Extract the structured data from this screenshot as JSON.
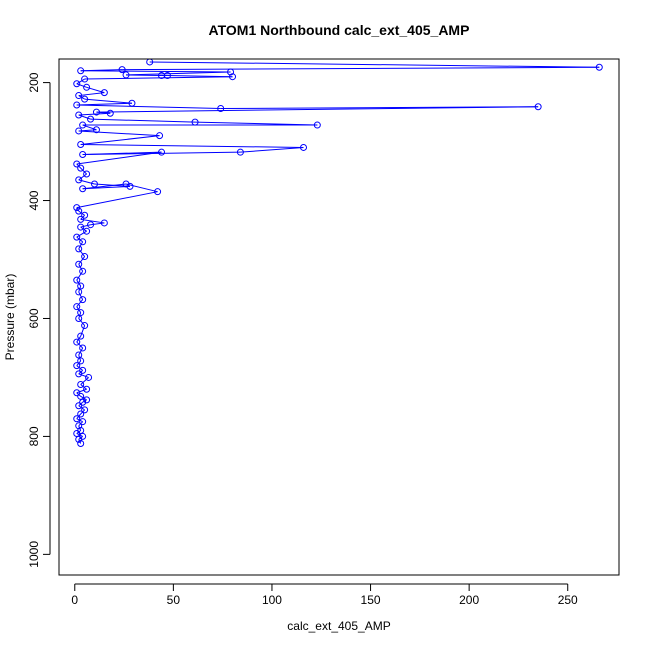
{
  "chart_data": {
    "type": "scatter",
    "title": "ATOM1 Northbound calc_ext_405_AMP",
    "xlabel": "calc_ext_405_AMP",
    "ylabel": "Pressure (mbar)",
    "xlim": [
      -8,
      276
    ],
    "ylim": [
      1035,
      160
    ],
    "y_reversed": true,
    "x_ticks": [
      0,
      50,
      100,
      150,
      200,
      250
    ],
    "y_ticks": [
      200,
      400,
      600,
      800,
      1000
    ],
    "grid": false,
    "series_color": "#0000ff",
    "marker": "open-circle",
    "series": [
      {
        "values": [
          [
            3,
            812
          ],
          [
            2,
            805
          ],
          [
            4,
            800
          ],
          [
            1,
            795
          ],
          [
            3,
            790
          ],
          [
            2,
            782
          ],
          [
            4,
            775
          ],
          [
            1,
            770
          ],
          [
            3,
            762
          ],
          [
            5,
            755
          ],
          [
            2,
            748
          ],
          [
            4,
            742
          ],
          [
            6,
            738
          ],
          [
            3,
            732
          ],
          [
            1,
            726
          ],
          [
            6,
            720
          ],
          [
            3,
            712
          ],
          [
            7,
            700
          ],
          [
            2,
            694
          ],
          [
            4,
            688
          ],
          [
            1,
            680
          ],
          [
            3,
            672
          ],
          [
            2,
            662
          ],
          [
            4,
            650
          ],
          [
            1,
            640
          ],
          [
            3,
            630
          ],
          [
            5,
            612
          ],
          [
            2,
            600
          ],
          [
            3,
            590
          ],
          [
            1,
            580
          ],
          [
            4,
            568
          ],
          [
            2,
            555
          ],
          [
            3,
            545
          ],
          [
            1,
            535
          ],
          [
            4,
            520
          ],
          [
            2,
            508
          ],
          [
            5,
            495
          ],
          [
            2,
            482
          ],
          [
            4,
            470
          ],
          [
            1,
            462
          ],
          [
            6,
            452
          ],
          [
            3,
            445
          ],
          [
            8,
            441
          ],
          [
            15,
            438
          ],
          [
            3,
            432
          ],
          [
            5,
            425
          ],
          [
            2,
            418
          ],
          [
            1,
            412
          ],
          [
            42,
            385
          ],
          [
            26,
            372
          ],
          [
            4,
            380
          ],
          [
            28,
            376
          ],
          [
            10,
            372
          ],
          [
            2,
            365
          ],
          [
            6,
            355
          ],
          [
            3,
            345
          ],
          [
            1,
            338
          ],
          [
            44,
            318
          ],
          [
            4,
            322
          ],
          [
            84,
            318
          ],
          [
            116,
            310
          ],
          [
            3,
            305
          ],
          [
            43,
            290
          ],
          [
            2,
            282
          ],
          [
            11,
            280
          ],
          [
            4,
            272
          ],
          [
            123,
            272
          ],
          [
            61,
            267
          ],
          [
            8,
            262
          ],
          [
            2,
            255
          ],
          [
            18,
            252
          ],
          [
            11,
            250
          ],
          [
            235,
            241
          ],
          [
            74,
            244
          ],
          [
            1,
            238
          ],
          [
            29,
            235
          ],
          [
            5,
            228
          ],
          [
            2,
            222
          ],
          [
            15,
            217
          ],
          [
            6,
            208
          ],
          [
            1,
            202
          ],
          [
            5,
            194
          ],
          [
            80,
            190
          ],
          [
            47,
            188
          ],
          [
            44,
            188
          ],
          [
            26,
            187
          ],
          [
            79,
            182
          ],
          [
            3,
            180
          ],
          [
            24,
            178
          ],
          [
            266,
            174
          ],
          [
            38,
            165
          ]
        ]
      }
    ]
  }
}
